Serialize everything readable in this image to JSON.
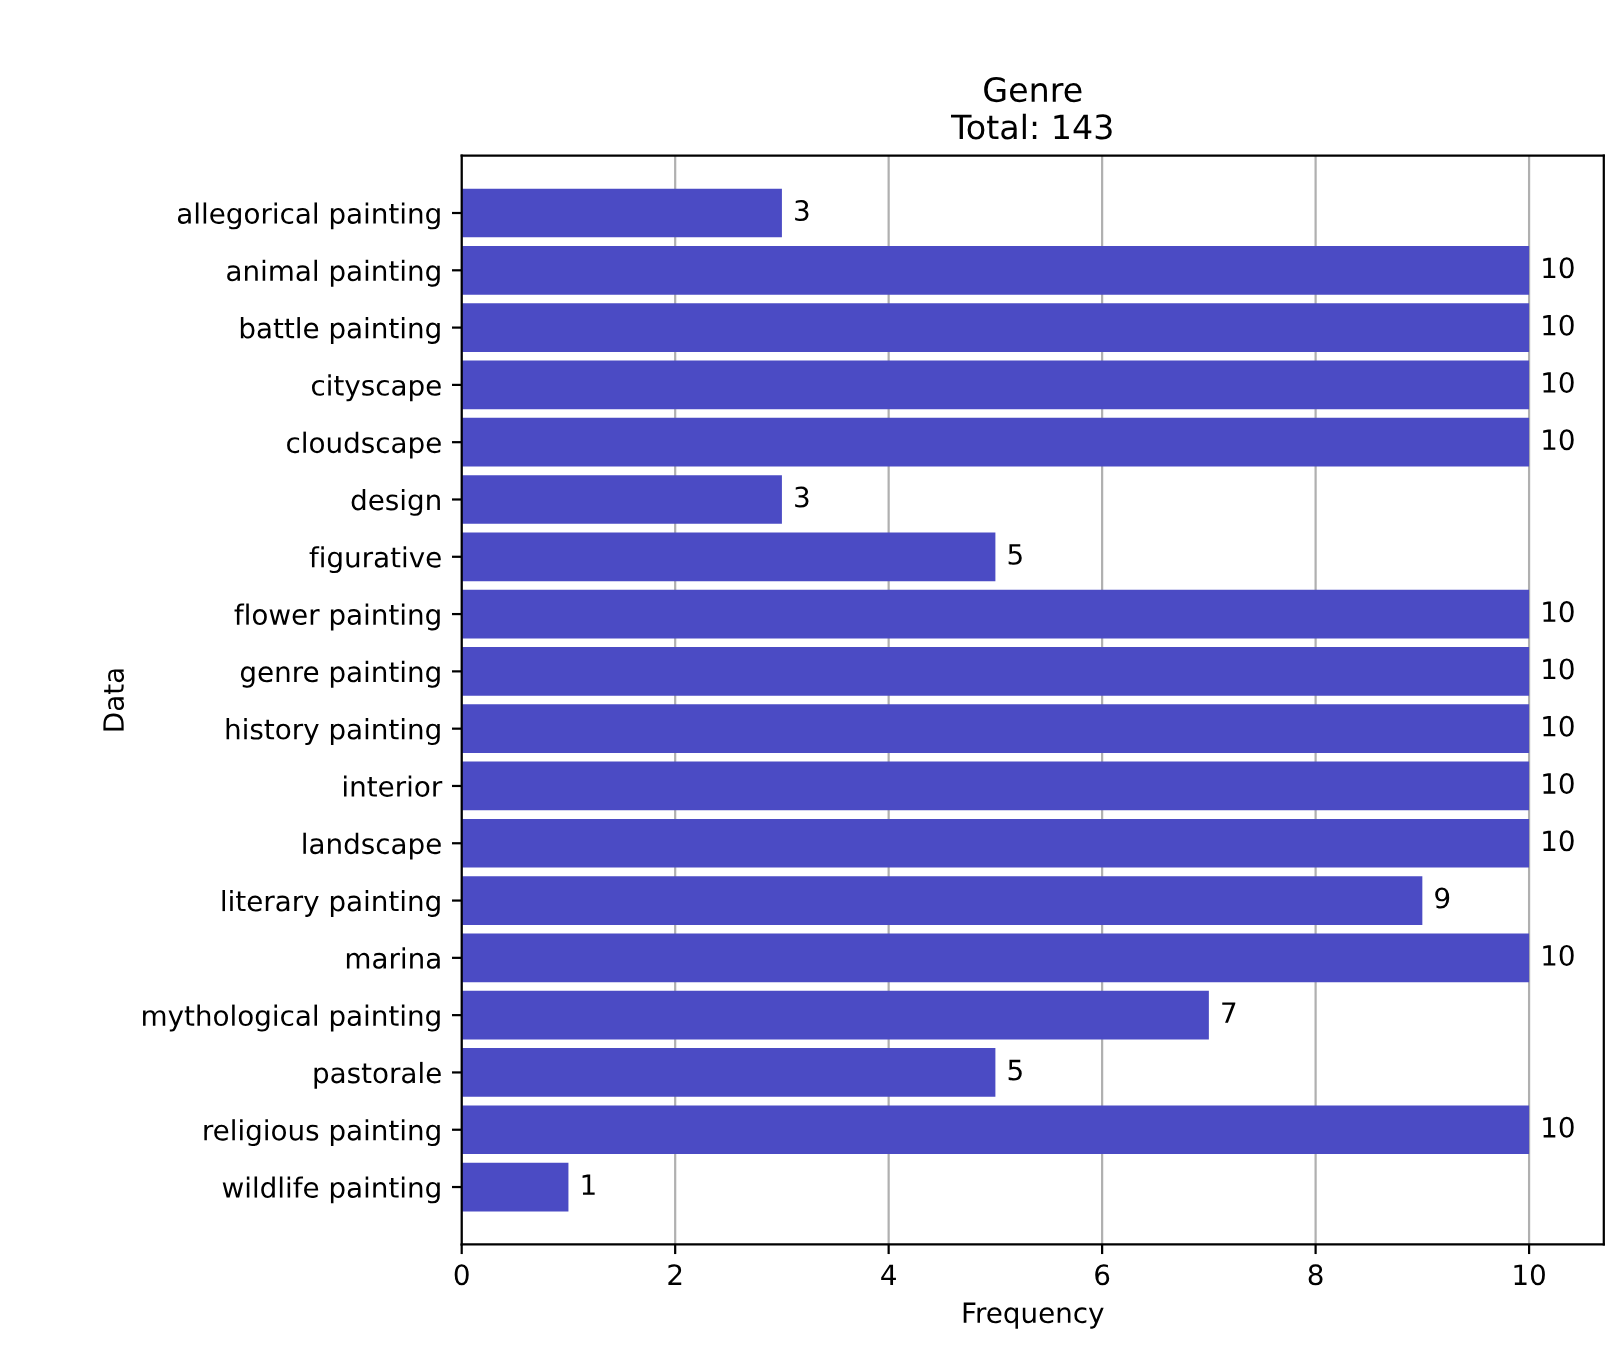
{
  "chart_data": {
    "type": "bar",
    "orientation": "horizontal",
    "title": "Genre\nTotal: 143",
    "xlabel": "Frequency",
    "ylabel": "Data",
    "categories": [
      "allegorical painting",
      "animal painting",
      "battle painting",
      "cityscape",
      "cloudscape",
      "design",
      "figurative",
      "flower painting",
      "genre painting",
      "history painting",
      "interior",
      "landscape",
      "literary painting",
      "marina",
      "mythological painting",
      "pastorale",
      "religious painting",
      "wildlife painting"
    ],
    "values": [
      3,
      10,
      10,
      10,
      10,
      3,
      5,
      10,
      10,
      10,
      10,
      10,
      9,
      10,
      7,
      5,
      10,
      1
    ],
    "color": "#4b4bc4",
    "xlim": [
      0,
      10.7
    ],
    "xticks": [
      0,
      2,
      4,
      6,
      8,
      10
    ],
    "grid": "x",
    "data_labels": true
  }
}
